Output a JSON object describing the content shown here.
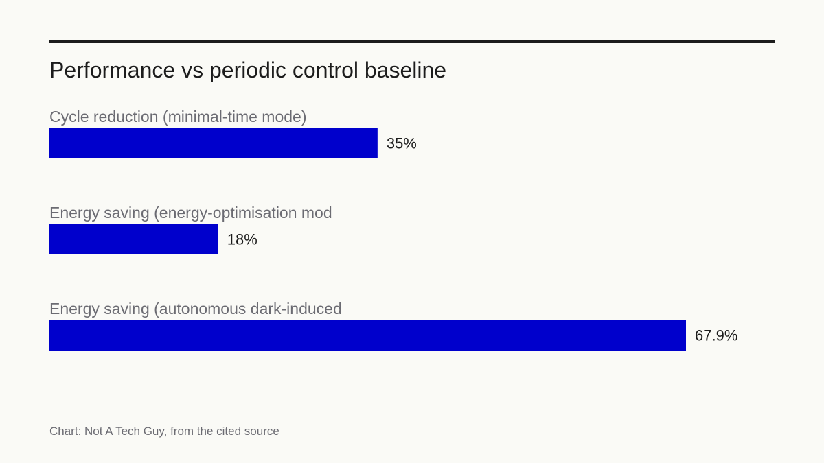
{
  "chart_data": {
    "type": "bar",
    "orientation": "horizontal",
    "title": "Performance vs periodic control baseline",
    "categories": [
      "Cycle reduction (minimal-time mode)",
      "Energy saving (energy-optimisation mod",
      "Energy saving (autonomous dark-induced"
    ],
    "values": [
      35,
      18,
      67.9
    ],
    "value_labels": [
      "35%",
      "18%",
      "67.9%"
    ],
    "unit": "%",
    "xlim": [
      0,
      67.9
    ],
    "bar_color": "#0000cc",
    "grid": false,
    "legend": "none"
  },
  "source": "Chart: Not A Tech Guy, from the cited source"
}
